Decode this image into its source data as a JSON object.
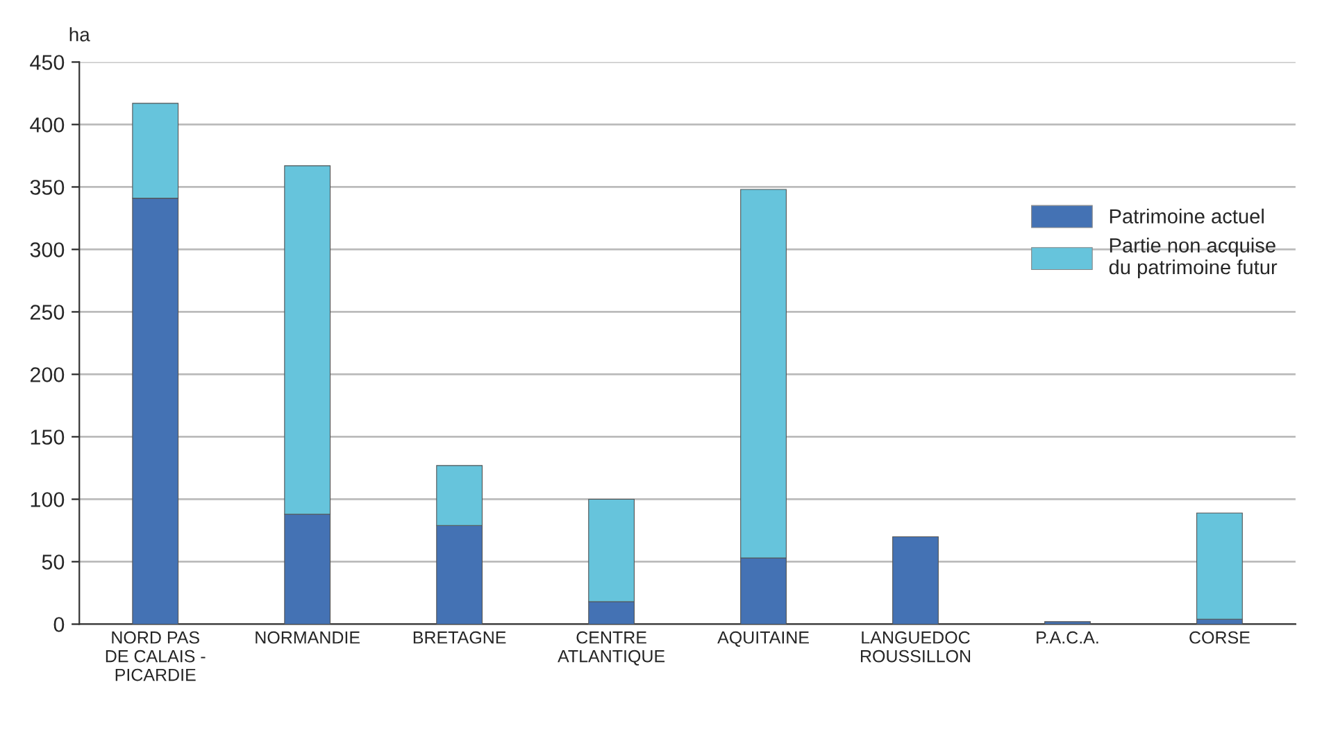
{
  "chart_data": {
    "type": "bar",
    "ylabel": "ha",
    "stacked": true,
    "categories": [
      "NORD PAS\nDE CALAIS -\nPICARDIE",
      "NORMANDIE",
      "BRETAGNE",
      "CENTRE\nATLANTIQUE",
      "AQUITAINE",
      "LANGUEDOC\nROUSSILLON",
      "P.A.C.A.",
      "CORSE"
    ],
    "series": [
      {
        "name": "Patrimoine actuel",
        "color": "#4472b4",
        "values": [
          341,
          88,
          79,
          18,
          53,
          70,
          2,
          4
        ]
      },
      {
        "name": "Partie non acquise\ndu patrimoine futur",
        "color": "#66c4dc",
        "values": [
          76,
          279,
          48,
          82,
          295,
          null,
          null,
          85
        ]
      }
    ],
    "ylim": [
      0,
      450
    ],
    "yticks": [
      0,
      50,
      100,
      150,
      200,
      250,
      300,
      350,
      400,
      450
    ],
    "grid": "y",
    "legend": "right"
  }
}
